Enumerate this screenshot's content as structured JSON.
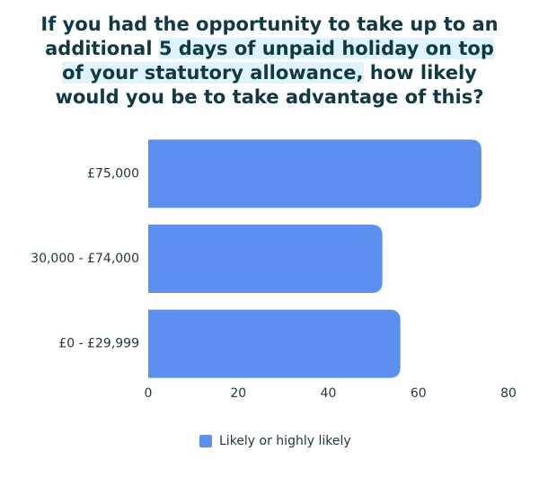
{
  "chart_data": {
    "type": "bar",
    "orientation": "horizontal",
    "title": [
      "If you had the opportunity to take up to an additional ",
      "5 days of unpaid holiday on top of your statutory allowance,",
      " how likely would you be to take advantage of this?"
    ],
    "categories": [
      "£75,000",
      "30,000 - £74,000",
      "£0 - £29,999"
    ],
    "series": [
      {
        "name": "Likely or highly likely",
        "color": "#5b8ff0",
        "values": [
          74,
          52,
          56
        ]
      }
    ],
    "xlim": [
      0,
      80
    ],
    "xticks": [
      0,
      20,
      40,
      60,
      80
    ],
    "grid": false,
    "legend": "bottom"
  }
}
